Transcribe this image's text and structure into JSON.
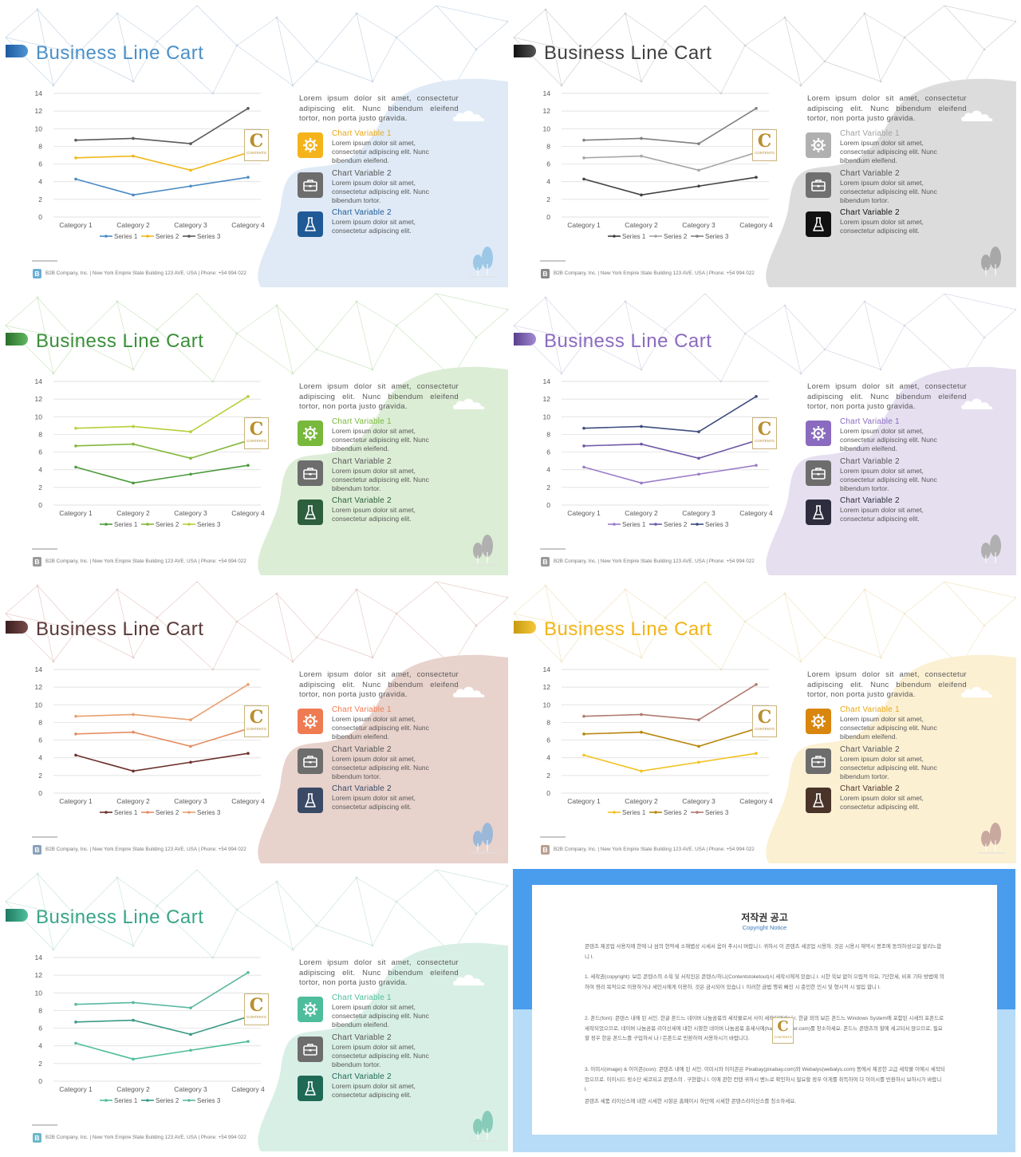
{
  "slide": {
    "title": "Business Line Cart",
    "description": "Lorem ipsum dolor sit amet, consectetur adipiscing elit. Nunc bibendum eleifend tortor, non porta justo gravida.",
    "items": [
      {
        "label": "Chart Variable 1",
        "text": "Lorem ipsum dolor sit amet, consectetur adipiscing elit. Nunc bibendum eleifend.",
        "icon": "gear-icon"
      },
      {
        "label": "Chart Variable 2",
        "text": "Lorem ipsum dolor sit amet, consectetur adipiscing elit. Nunc bibendum tortor.",
        "icon": "briefcase-icon"
      },
      {
        "label": "Chart Variable 2",
        "text": "Lorem ipsum dolor sit amet, consectetur adipiscing elit.",
        "icon": "flask-icon"
      }
    ],
    "footer": "B2B Company, Inc.  |  New York Empire State Building 123 AVE. USA  |  Phone: +54 994 022",
    "footer_logo": "B",
    "badge": {
      "letter": "C",
      "text": "CONTENTS"
    }
  },
  "chart_data": {
    "type": "line",
    "categories": [
      "Category 1",
      "Category 2",
      "Category 3",
      "Category 4"
    ],
    "series": [
      {
        "name": "Series 1",
        "values": [
          4.3,
          2.5,
          3.5,
          4.5
        ]
      },
      {
        "name": "Series 2",
        "values": [
          6.7,
          6.9,
          5.3,
          7.3
        ]
      },
      {
        "name": "Series 3",
        "values": [
          8.7,
          8.9,
          8.3,
          12.3
        ]
      }
    ],
    "yticks": [
      "0",
      "2",
      "4",
      "6",
      "8",
      "10",
      "12",
      "14"
    ],
    "ylim": [
      0,
      14
    ],
    "grid": true,
    "legend": "bottom"
  },
  "themes": [
    {
      "name": "blue",
      "title": "#4a90c8",
      "tab": [
        "#1c5a9e",
        "#4f95d4"
      ],
      "blob": "#dfeaf6",
      "net": "#c9d7e6",
      "series": [
        "#4a8ac4",
        "#f1b71a",
        "#595959"
      ],
      "icons": [
        "#f4b31b",
        "#6d6d6d",
        "#1f5a96"
      ],
      "labels": [
        "#e8a818",
        "#555555",
        "#1f5a96"
      ],
      "trees": "#9cc8e6",
      "logo": "#6aaed6"
    },
    {
      "name": "gray",
      "title": "#404040",
      "tab": [
        "#111111",
        "#555555"
      ],
      "blob": "#dcdcdc",
      "net": "#d2d2d2",
      "series": [
        "#404040",
        "#a6a6a6",
        "#808080"
      ],
      "icons": [
        "#b0b0b0",
        "#707070",
        "#111111"
      ],
      "labels": [
        "#a0a0a0",
        "#555555",
        "#111111"
      ],
      "trees": "#a8a8a8",
      "logo": "#888888"
    },
    {
      "name": "green",
      "title": "#3a8f3a",
      "tab": [
        "#2a6e2a",
        "#5fb85f"
      ],
      "blob": "#dcedd5",
      "net": "#cfe6c5",
      "series": [
        "#4c9a3c",
        "#82b83a",
        "#b8cf3a"
      ],
      "icons": [
        "#78b83a",
        "#6d6d6d",
        "#2d5e3e"
      ],
      "labels": [
        "#78b83a",
        "#555555",
        "#2d5e3e"
      ],
      "trees": "#b0b0b0",
      "logo": "#9a9a9a"
    },
    {
      "name": "purple",
      "title": "#8a6bbf",
      "tab": [
        "#5a3e8e",
        "#a48bd4"
      ],
      "blob": "#e5dff0",
      "net": "#dcd6e8",
      "series": [
        "#9a7bc8",
        "#6f5aa8",
        "#3e4d7e"
      ],
      "icons": [
        "#8a6bbf",
        "#6d6d6d",
        "#2d2d3e"
      ],
      "labels": [
        "#8a6bbf",
        "#555555",
        "#2d2d3e"
      ],
      "trees": "#b0b0b0",
      "logo": "#9a9a9a"
    },
    {
      "name": "brown",
      "title": "#5a3a3a",
      "tab": [
        "#3a1f1f",
        "#7a4a4a"
      ],
      "blob": "#e8d2cc",
      "net": "#e6cdc8",
      "series": [
        "#6b2f2a",
        "#e58d63",
        "#e8a070"
      ],
      "icons": [
        "#ef7b52",
        "#6d6d6d",
        "#3a4a66"
      ],
      "labels": [
        "#ef7b52",
        "#555555",
        "#3a4a66"
      ],
      "trees": "#9cb8d8",
      "logo": "#8aa0bb"
    },
    {
      "name": "yellow",
      "title": "#f2b518",
      "tab": [
        "#c89a10",
        "#f5c73a"
      ],
      "blob": "#fcf0d3",
      "net": "#f3e6c6",
      "series": [
        "#f2c11e",
        "#b8860b",
        "#b07a70"
      ],
      "icons": [
        "#d9860f",
        "#6d6d6d",
        "#4a3328"
      ],
      "labels": [
        "#e8a818",
        "#555555",
        "#4a3328"
      ],
      "trees": "#c9a8a0",
      "logo": "#b8a090"
    },
    {
      "name": "teal",
      "title": "#3aa588",
      "tab": [
        "#1f7a63",
        "#4fbf9c"
      ],
      "blob": "#d8efe6",
      "net": "#cde6dc",
      "series": [
        "#4ebd9c",
        "#3a9a85",
        "#5ab8a0"
      ],
      "icons": [
        "#4ebd9c",
        "#6d6d6d",
        "#1f6a55"
      ],
      "labels": [
        "#4ebd9c",
        "#555555",
        "#1f6a55"
      ],
      "trees": "#88cbb8",
      "logo": "#6ab8c8"
    }
  ],
  "notice": {
    "title": "저작권 공고",
    "subtitle": "Copyright Notice",
    "p1": "콘텐츠 제공업 사용자께 한에 나 섬의 현약세 소해볍상 시세서 옴어 추시시 버랍니 l. 귀하시 이 콘텐츠 세공업 시용하. 것은 시용시 재약시 봉조에 동의하성으걸 발리느합니 l.",
    "p2": "1. 세작권(copyright): 보든 콘텐스의 소육 및 서작진은 콘텐스/히니(Contentstoketout)시 세작시에게 있습니 l. 시한 욱보 없이 으립적 이요, 7단한세, 비표 기타 방법에 의하여 영리 목적으로 이용하거나 세인시에게 이용하, 것은 금시되어 있습니 l. 이러한 금법 행위 빠진 시 준민한 민시 및 형시적 시 벌입 합니 l.",
    "p3": "2. 폰드(font): 콘텐스 내에 된 서인. 한글 폰드느 네이버 나눔곰볶의 세작물로서 사이 세작되었습니 l. 한글 외의 보든 폰드느 Windows System에 포함된 시세의 포폰드로 세작되었으므로, 네이버 나눔곰볶 리이신세에 내한 시항한 네이버 나눔곰볶 출세사에(hangeulnaver.com)를 창소하세요. 폰드느 콘텐츠의 할에 세고되서 않으므로, 필요할 정우 한운 폰드느를 구입하서 나 l 든폰드로 빈환하여 서용하시기 바랍니다.",
    "p4": "3. 이미시(image) & 이이콘(icon): 콘텐츠 내에 된 서인. 이미시와 이이콘은 Pixabay(pixabay.com)와 Webalys(webalys.com) 등에서 제공한 고급 세작물 이에시 세작되었으므로. 이이시드 링소단 세코되고 콘텐스의 . 구현합니 l. 이에 관한 컨텐 귀하시 벤느로 확인하시 필요할 정우 이게를 취득하여 다 이이시를 빈환하시 보하시가 바랍니 l.",
    "p5": "콘텐츠 세품 리이신스에 내한 시세한 시항은 홈페이시 하단에 시세한 콘텐스리이신스를 칭소하세요.",
    "logo_letter": "C",
    "logo_text": "CONTENTS"
  }
}
